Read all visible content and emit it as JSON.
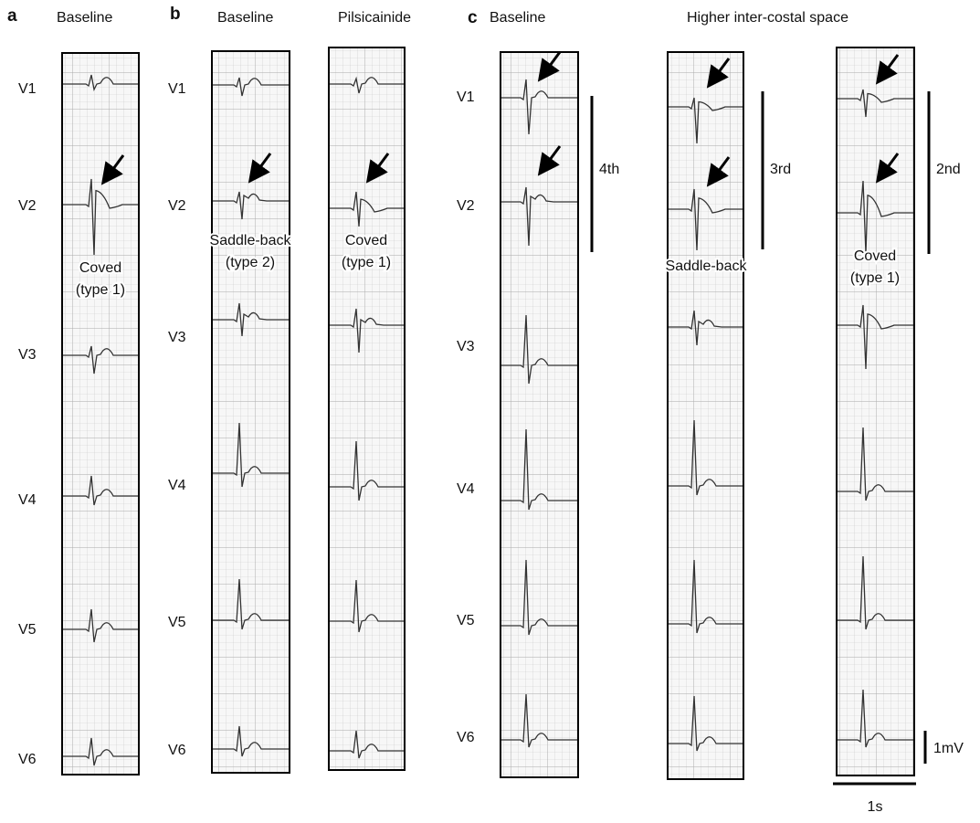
{
  "panel_a": {
    "label": "a",
    "title": "Baseline",
    "leads": [
      "V1",
      "V2",
      "V3",
      "V4",
      "V5",
      "V6"
    ],
    "annotation": [
      "Coved",
      "(type 1)"
    ]
  },
  "panel_b": {
    "label": "b",
    "titles": [
      "Baseline",
      "Pilsicainide"
    ],
    "leads": [
      "V1",
      "V2",
      "V3",
      "V4",
      "V5",
      "V6"
    ],
    "annotations": [
      [
        "Saddle-back",
        "(type 2)"
      ],
      [
        "Coved",
        "(type 1)"
      ]
    ]
  },
  "panel_c": {
    "label": "c",
    "titles": [
      "Baseline",
      "Higher inter-costal space"
    ],
    "leads": [
      "V1",
      "V2",
      "V3",
      "V4",
      "V5",
      "V6"
    ],
    "intercostal_labels": [
      "4th",
      "3rd",
      "2nd"
    ],
    "annotations": [
      [
        "Saddle-back"
      ],
      [
        "Coved",
        "(type 1)"
      ]
    ]
  },
  "scale": {
    "voltage": "1mV",
    "time": "1s"
  }
}
